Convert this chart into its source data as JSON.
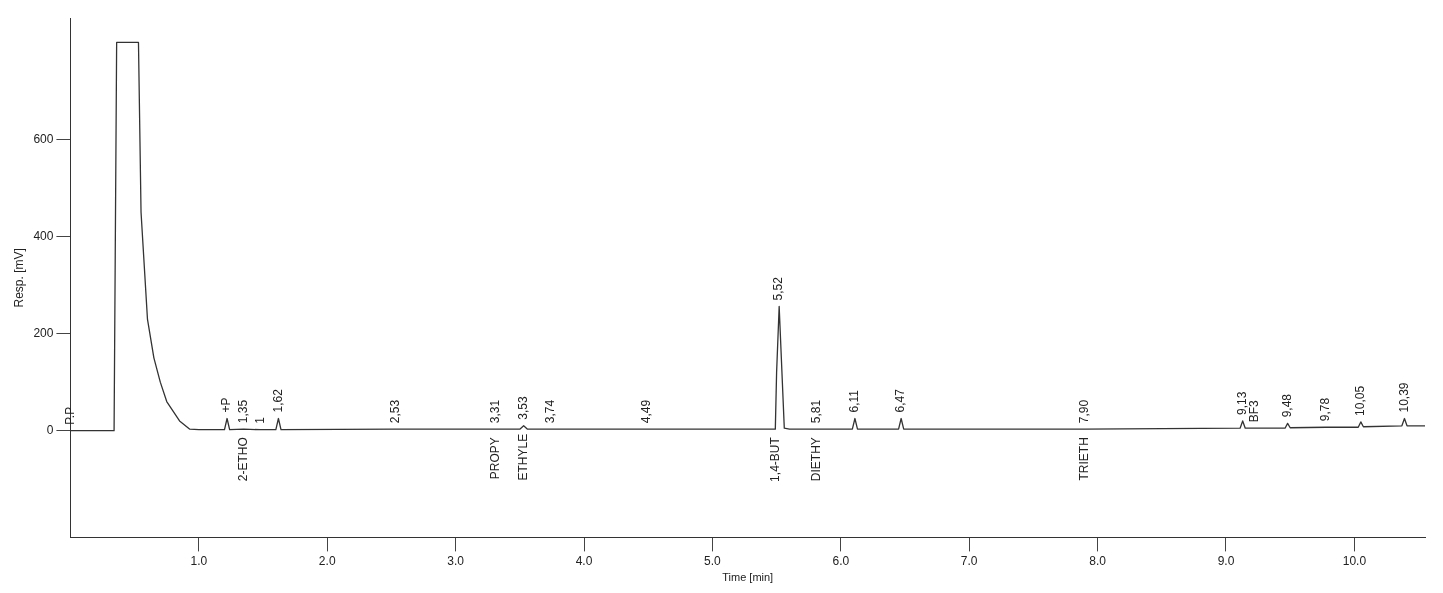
{
  "chart_data": {
    "type": "line",
    "xlabel": "Time [min]",
    "ylabel": "Resp. [mV]",
    "x": [
      0,
      0.34,
      0.36,
      0.53,
      0.55,
      0.6,
      0.65,
      0.7,
      0.75,
      0.85,
      0.93,
      1.0,
      1.2,
      1.22,
      1.24,
      1.35,
      1.48,
      1.6,
      1.62,
      1.64,
      2.53,
      3.31,
      3.5,
      3.53,
      3.56,
      3.74,
      4.49,
      5.49,
      5.5,
      5.52,
      5.56,
      5.6,
      5.81,
      6.09,
      6.11,
      6.13,
      6.45,
      6.47,
      6.49,
      7.9,
      9.11,
      9.13,
      9.15,
      9.22,
      9.46,
      9.48,
      9.5,
      9.78,
      10.03,
      10.05,
      10.07,
      10.37,
      10.39,
      10.41,
      10.55
    ],
    "series": [
      {
        "color": "#333333",
        "values": [
          0,
          0,
          800,
          800,
          450,
          230,
          150,
          100,
          60,
          20,
          3,
          2,
          2,
          25,
          2,
          3,
          2,
          2,
          25,
          2,
          3,
          3,
          3,
          10,
          3,
          3,
          3,
          3,
          120,
          256,
          5,
          3,
          3,
          3,
          25,
          3,
          3,
          25,
          3,
          3,
          5,
          20,
          5,
          5,
          5,
          15,
          6,
          7,
          7,
          18,
          8,
          10,
          25,
          10,
          10
        ]
      }
    ],
    "xlim": [
      0,
      10.55
    ],
    "ylim": [
      -220,
      850
    ],
    "xticks": [
      {
        "value": 1,
        "label": "1.0"
      },
      {
        "value": 2,
        "label": "2.0"
      },
      {
        "value": 3,
        "label": "3.0"
      },
      {
        "value": 4,
        "label": "4.0"
      },
      {
        "value": 5,
        "label": "5.0"
      },
      {
        "value": 6,
        "label": "6.0"
      },
      {
        "value": 7,
        "label": "7.0"
      },
      {
        "value": 8,
        "label": "8.0"
      },
      {
        "value": 9,
        "label": "9.0"
      },
      {
        "value": 10,
        "label": "10.0"
      }
    ],
    "yticks": [
      0,
      200,
      400,
      600
    ],
    "grid": false,
    "legend": false,
    "marker": "none",
    "line_style": "solid",
    "annotations": [
      {
        "text": "P.P",
        "x": 0,
        "y": 0
      },
      {
        "text": "+P",
        "x": 1.22,
        "y": 25
      },
      {
        "text": "1,35",
        "x": 1.35,
        "y": 3
      },
      {
        "text": "1",
        "x": 1.48,
        "y": 2
      },
      {
        "text": "1,62",
        "x": 1.62,
        "y": 25
      },
      {
        "text": "2,53",
        "x": 2.53,
        "y": 3
      },
      {
        "text": "3,31",
        "x": 3.31,
        "y": 3
      },
      {
        "text": "3,53",
        "x": 3.53,
        "y": 10
      },
      {
        "text": "3,74",
        "x": 3.74,
        "y": 3
      },
      {
        "text": "4,49",
        "x": 4.49,
        "y": 3
      },
      {
        "text": "5,52",
        "x": 5.52,
        "y": 256
      },
      {
        "text": "5,81",
        "x": 5.81,
        "y": 3
      },
      {
        "text": "6,11",
        "x": 6.11,
        "y": 25
      },
      {
        "text": "6,47",
        "x": 6.47,
        "y": 25
      },
      {
        "text": "7,90",
        "x": 7.9,
        "y": 3
      },
      {
        "text": "9,13",
        "x": 9.13,
        "y": 20
      },
      {
        "text": "BF3",
        "x": 9.22,
        "y": 5
      },
      {
        "text": "9,48",
        "x": 9.48,
        "y": 15
      },
      {
        "text": "9,78",
        "x": 9.78,
        "y": 7
      },
      {
        "text": "10,05",
        "x": 10.05,
        "y": 18
      },
      {
        "text": "10,39",
        "x": 10.39,
        "y": 25
      },
      {
        "text": "2-ETHO",
        "x": 1.35,
        "y": 3
      },
      {
        "text": "PROPY",
        "x": 3.31,
        "y": 3
      },
      {
        "text": "ETHYLE",
        "x": 3.53,
        "y": 10
      },
      {
        "text": "1,4-BUT",
        "x": 5.49,
        "y": 3
      },
      {
        "text": "DIETHY",
        "x": 5.81,
        "y": 3
      },
      {
        "text": "TRIETH",
        "x": 7.9,
        "y": 3
      }
    ]
  }
}
